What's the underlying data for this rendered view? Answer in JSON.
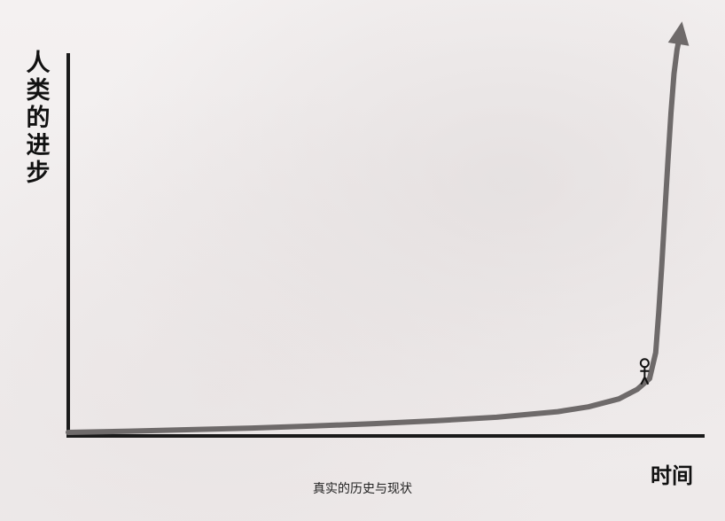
{
  "chart_data": {
    "type": "line",
    "title": "",
    "ylabel": "人类的进步",
    "xlabel": "时间",
    "caption": "真实的历史与现状",
    "x": [
      0,
      10,
      20,
      30,
      40,
      50,
      60,
      70,
      80,
      85,
      90,
      93,
      95,
      96,
      96.5,
      97,
      97.5,
      98,
      98.5,
      99,
      99.5,
      100
    ],
    "y": [
      0,
      0.3,
      0.7,
      1.1,
      1.6,
      2.2,
      2.9,
      3.8,
      5.2,
      6.4,
      8.4,
      10.8,
      13.5,
      20,
      30,
      42,
      55,
      68,
      80,
      90,
      96,
      100
    ],
    "xlim": [
      0,
      104
    ],
    "ylim": [
      0,
      100
    ],
    "grid": false,
    "marker_figure": "stick-figure-icon",
    "colors": {
      "axis": "#1a1a1a",
      "line": "#6e6a6a"
    }
  }
}
